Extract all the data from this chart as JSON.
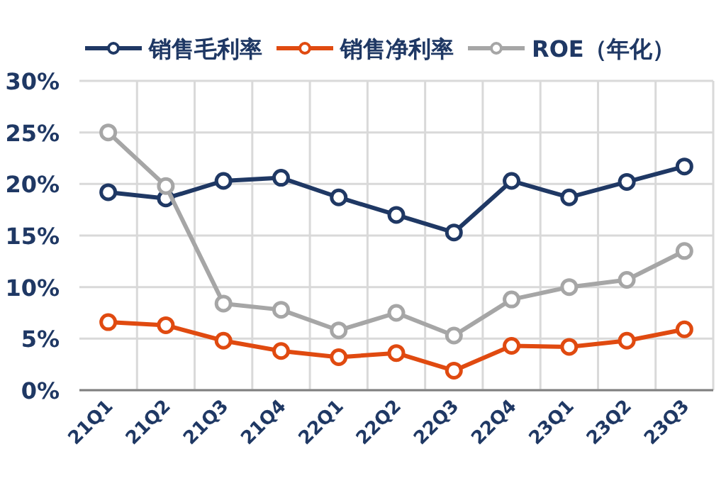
{
  "chart_data": {
    "type": "line",
    "categories": [
      "21Q1",
      "21Q2",
      "21Q3",
      "21Q4",
      "22Q1",
      "22Q2",
      "22Q3",
      "22Q4",
      "23Q1",
      "23Q2",
      "23Q3"
    ],
    "series": [
      {
        "name": "销售毛利率",
        "color": "#1f3864",
        "values": [
          19.2,
          18.6,
          20.3,
          20.6,
          18.7,
          17.0,
          15.3,
          20.3,
          18.7,
          20.2,
          21.7
        ]
      },
      {
        "name": "销售净利率",
        "color": "#e04a10",
        "values": [
          6.6,
          6.3,
          4.8,
          3.8,
          3.2,
          3.6,
          1.9,
          4.3,
          4.2,
          4.8,
          5.9
        ]
      },
      {
        "name": "ROE（年化）",
        "color": "#a6a6a6",
        "values": [
          25.0,
          19.8,
          8.4,
          7.8,
          5.8,
          7.5,
          5.3,
          8.8,
          10.0,
          10.7,
          13.5
        ]
      }
    ],
    "ylim": [
      0,
      30
    ],
    "yticks": [
      {
        "value": 0,
        "label": "0%"
      },
      {
        "value": 5,
        "label": "5%"
      },
      {
        "value": 10,
        "label": "10%"
      },
      {
        "value": 15,
        "label": "15%"
      },
      {
        "value": 20,
        "label": "20%"
      },
      {
        "value": 25,
        "label": "25%"
      },
      {
        "value": 30,
        "label": "30%"
      }
    ],
    "grid": true,
    "legend": "top",
    "marker": "circle",
    "line_style": "solid"
  }
}
